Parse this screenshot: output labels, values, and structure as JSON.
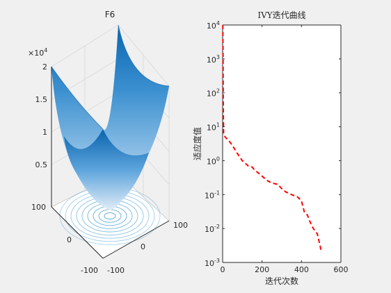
{
  "chart_data": [
    {
      "type": "surface",
      "title": "F6",
      "function_description": "",
      "x_ticks": [
        "-100",
        "0",
        "100"
      ],
      "y_ticks": [
        "-100",
        "0",
        "100"
      ],
      "z_ticks": [
        "0.5",
        "1",
        "1.5",
        "2"
      ],
      "z_exponent_label": "×10",
      "z_exponent_power": "4",
      "xlim": [
        -100,
        100
      ],
      "ylim": [
        -100,
        100
      ],
      "zlim": [
        0,
        20000
      ],
      "grid": true,
      "colormap": [
        "#0a66b0",
        "#dbe8f5"
      ],
      "contour_color": "#4a9fd4"
    },
    {
      "type": "line",
      "title": "IVY迭代曲线",
      "xlabel": "迭代次数",
      "ylabel": "适应度值",
      "x_ticks": [
        "0",
        "200",
        "400",
        "600"
      ],
      "y_ticks": [
        {
          "base": "10",
          "exp": "-3"
        },
        {
          "base": "10",
          "exp": "-2"
        },
        {
          "base": "10",
          "exp": "-1"
        },
        {
          "base": "10",
          "exp": "0"
        },
        {
          "base": "10",
          "exp": "1"
        },
        {
          "base": "10",
          "exp": "2"
        },
        {
          "base": "10",
          "exp": "3"
        },
        {
          "base": "10",
          "exp": "4"
        }
      ],
      "xlim": [
        0,
        600
      ],
      "ylim": [
        0.001,
        10000
      ],
      "yscale": "log",
      "grid": false,
      "series": [
        {
          "style": "dashed",
          "color": "#ff0000",
          "x": [
            1,
            2,
            3,
            5,
            8,
            15,
            30,
            50,
            70,
            100,
            130,
            150,
            160,
            200,
            230,
            250,
            280,
            300,
            320,
            350,
            380,
            385,
            400,
            415,
            430,
            445,
            460,
            480,
            495,
            500
          ],
          "y": [
            10000,
            1200,
            60,
            6.5,
            5.5,
            4.8,
            4.0,
            2.8,
            1.8,
            1.0,
            0.7,
            0.65,
            0.55,
            0.35,
            0.25,
            0.22,
            0.2,
            0.15,
            0.12,
            0.1,
            0.085,
            0.08,
            0.065,
            0.03,
            0.025,
            0.015,
            0.01,
            0.007,
            0.003,
            0.002
          ]
        }
      ]
    }
  ]
}
